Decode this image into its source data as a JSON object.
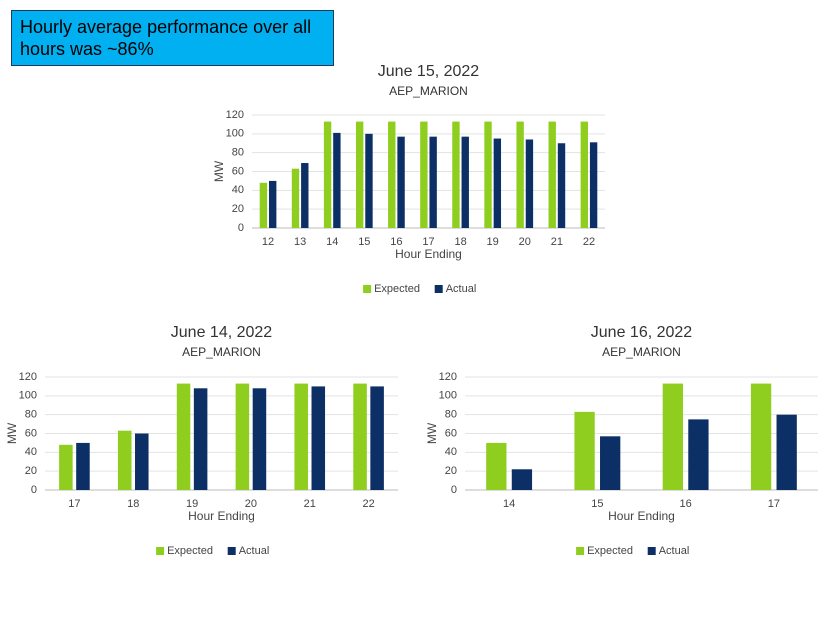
{
  "callout": "Hourly average performance over all hours was ~86%",
  "chart_data": [
    {
      "type": "bar",
      "title": "June 15, 2022",
      "subtitle": "AEP_MARION",
      "x_label": "Hour Ending",
      "y_label": "MW",
      "categories": [
        "12",
        "13",
        "14",
        "15",
        "16",
        "17",
        "18",
        "19",
        "20",
        "21",
        "22"
      ],
      "series": [
        {
          "name": "Expected",
          "color": "#8fce1e",
          "values": [
            48,
            63,
            113,
            113,
            113,
            113,
            113,
            113,
            113,
            113,
            113
          ]
        },
        {
          "name": "Actual",
          "color": "#0c2f66",
          "values": [
            50,
            69,
            101,
            100,
            97,
            97,
            97,
            95,
            94,
            90,
            91
          ]
        }
      ],
      "ylim": [
        0,
        120
      ],
      "yticks": [
        0,
        20,
        40,
        60,
        80,
        100,
        120
      ],
      "grid": true,
      "legend": "bottom"
    },
    {
      "type": "bar",
      "title": "June 14, 2022",
      "subtitle": "AEP_MARION",
      "x_label": "Hour Ending",
      "y_label": "MW",
      "categories": [
        "17",
        "18",
        "19",
        "20",
        "21",
        "22"
      ],
      "series": [
        {
          "name": "Expected",
          "color": "#8fce1e",
          "values": [
            48,
            63,
            113,
            113,
            113,
            113
          ]
        },
        {
          "name": "Actual",
          "color": "#0c2f66",
          "values": [
            50,
            60,
            108,
            108,
            110,
            110
          ]
        }
      ],
      "ylim": [
        0,
        120
      ],
      "yticks": [
        0,
        20,
        40,
        60,
        80,
        100,
        120
      ],
      "grid": true,
      "legend": "bottom"
    },
    {
      "type": "bar",
      "title": "June 16, 2022",
      "subtitle": "AEP_MARION",
      "x_label": "Hour Ending",
      "y_label": "MW",
      "categories": [
        "14",
        "15",
        "16",
        "17"
      ],
      "series": [
        {
          "name": "Expected",
          "color": "#8fce1e",
          "values": [
            50,
            83,
            113,
            113
          ]
        },
        {
          "name": "Actual",
          "color": "#0c2f66",
          "values": [
            22,
            57,
            75,
            80
          ]
        }
      ],
      "ylim": [
        0,
        120
      ],
      "yticks": [
        0,
        20,
        40,
        60,
        80,
        100,
        120
      ],
      "grid": true,
      "legend": "bottom"
    }
  ]
}
